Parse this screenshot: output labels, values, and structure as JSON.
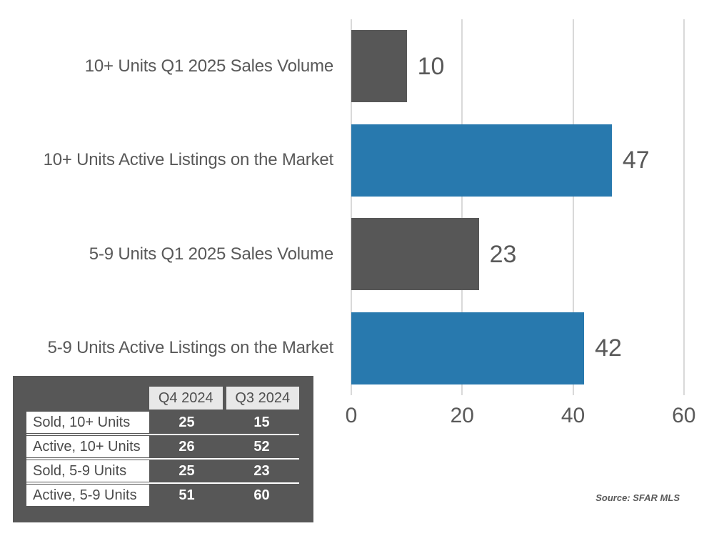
{
  "chart_data": {
    "type": "bar",
    "orientation": "horizontal",
    "title": "",
    "categories": [
      "10+ Units Q1 2025 Sales Volume",
      "10+ Units Active Listings on the Market",
      "5-9 Units Q1 2025 Sales Volume",
      "5-9 Units Active Listings on the Market"
    ],
    "values": [
      10,
      47,
      23,
      42
    ],
    "bar_colors": [
      "#575757",
      "#2879ae",
      "#575757",
      "#2879ae"
    ],
    "x_tick_labels": [
      "0",
      "20",
      "40",
      "60"
    ],
    "x_tick_values": [
      0,
      20,
      40,
      60
    ],
    "xlim": [
      0,
      63.5
    ],
    "grid": true,
    "legend": false,
    "data_labels_shown": true
  },
  "summary_table": {
    "columns": [
      "Q4 2024",
      "Q3 2024"
    ],
    "rows": [
      {
        "label": "Sold, 10+ Units",
        "values": [
          "25",
          "15"
        ]
      },
      {
        "label": "Active, 10+ Units",
        "values": [
          "26",
          "52"
        ]
      },
      {
        "label": "Sold, 5-9 Units",
        "values": [
          "25",
          "23"
        ]
      },
      {
        "label": "Active, 5-9 Units",
        "values": [
          "51",
          "60"
        ]
      }
    ]
  },
  "source_note": "Source: SFAR MLS",
  "colors": {
    "bar_gray": "#575757",
    "bar_blue": "#2879ae",
    "text_gray": "#595959",
    "gridline": "#d9d9d9",
    "table_background": "#575757",
    "table_header_background": "#e8e8e8",
    "table_label_background": "#ffffff"
  }
}
